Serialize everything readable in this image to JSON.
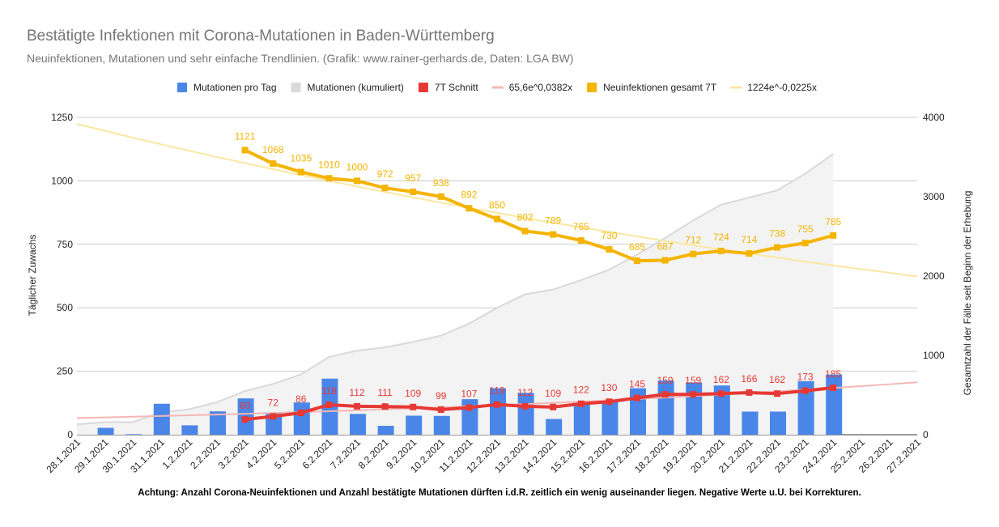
{
  "chart_data": {
    "type": "bar",
    "title": "Bestätigte Infektionen mit Corona-Mutationen in Baden-Württemberg",
    "subtitle": "Neuinfektionen, Mutationen und sehr einfache Trendlinien.  (Grafik: www.rainer-gerhards.de, Daten: LGA BW)",
    "footnote": "Achtung: Anzahl Corona-Neuinfektionen und Anzahl bestätigte Mutationen dürften i.d.R. zeitlich ein wenig auseinander liegen. Negative Werte u.U. bei Korrekturen.",
    "ylabel_left": "Täglicher Zuwachs",
    "ylabel_right": "Gesamtzahl der Fälle seit Beginn der Erhebung",
    "ylim_left": [
      0,
      1250
    ],
    "ylim_right": [
      0,
      4000
    ],
    "yticks_left": [
      0,
      250,
      500,
      750,
      1000,
      1250
    ],
    "yticks_right": [
      0,
      1000,
      2000,
      3000,
      4000
    ],
    "grid": true,
    "legend_position": "top",
    "categories": [
      "28.1.2021",
      "29.1.2021",
      "30.1.2021",
      "31.1.2021",
      "1.2.2021",
      "2.2.2021",
      "3.2.2021",
      "4.2.2021",
      "5.2.2021",
      "6.2.2021",
      "7.2.2021",
      "8.2.2021",
      "9.2.2021",
      "10.2.2021",
      "11.2.2021",
      "12.2.2021",
      "13.2.2021",
      "14.2.2021",
      "15.2.2021",
      "16.2.2021",
      "17.2.2021",
      "18.2.2021",
      "19.2.2021",
      "20.2.2021",
      "21.2.2021",
      "22.2.2021",
      "23.2.2021",
      "24.2.2021",
      "25.2.2021",
      "26.2.2021",
      "27.2.2021"
    ],
    "series": [
      {
        "name": "Mutationen pro Tag",
        "type": "bar",
        "axis": "left",
        "color": "#4a86e8",
        "values": [
          0,
          27,
          2,
          122,
          37,
          92,
          143,
          85,
          127,
          221,
          82,
          35,
          75,
          74,
          140,
          183,
          165,
          62,
          126,
          131,
          183,
          213,
          206,
          194,
          91,
          91,
          211,
          237,
          null,
          null,
          null
        ]
      },
      {
        "name": "Mutationen (kumuliert)",
        "type": "area",
        "axis": "right",
        "color": "#d9d9d9",
        "values": [
          130,
          160,
          160,
          280,
          320,
          410,
          550,
          640,
          760,
          980,
          1060,
          1100,
          1170,
          1250,
          1400,
          1600,
          1770,
          1830,
          1950,
          2080,
          2270,
          2480,
          2700,
          2900,
          2990,
          3080,
          3290,
          3540,
          null,
          null,
          null
        ]
      },
      {
        "name": "7T Schnitt",
        "type": "line",
        "axis": "left",
        "color": "#e53935",
        "values": [
          null,
          null,
          null,
          null,
          null,
          null,
          60,
          72,
          86,
          118,
          112,
          111,
          109,
          99,
          107,
          119,
          112,
          109,
          122,
          130,
          145,
          159,
          159,
          162,
          166,
          162,
          173,
          185,
          null,
          null,
          null
        ]
      },
      {
        "name": "65,6e^0,0382x",
        "type": "trendline",
        "axis": "left",
        "color": "#f4b7b3",
        "values": [
          65.6,
          68.2,
          70.8,
          73.6,
          76.4,
          79.4,
          82.5,
          85.7,
          89.1,
          92.5,
          96.1,
          99.9,
          103.8,
          107.8,
          112.0,
          116.4,
          120.9,
          125.6,
          130.5,
          135.6,
          140.9,
          146.4,
          152.1,
          158.0,
          164.2,
          170.6,
          177.2,
          184.1,
          191.3,
          198.7,
          206.5
        ]
      },
      {
        "name": "Neuinfektionen gesamt 7T",
        "type": "line",
        "axis": "left",
        "color": "#f4b400",
        "values": [
          null,
          null,
          null,
          null,
          null,
          null,
          1121,
          1068,
          1035,
          1010,
          1000,
          972,
          957,
          938,
          892,
          850,
          802,
          789,
          765,
          730,
          685,
          687,
          712,
          724,
          714,
          738,
          755,
          785,
          null,
          null,
          null
        ]
      },
      {
        "name": "1224e^-0,0225x",
        "type": "trendline",
        "axis": "left",
        "color": "#fbe7a1",
        "values": [
          1224,
          1197,
          1170,
          1144,
          1119,
          1094,
          1070,
          1046,
          1023,
          1000,
          978,
          956,
          935,
          914,
          894,
          874,
          854,
          835,
          817,
          799,
          781,
          763,
          746,
          730,
          714,
          698,
          682,
          667,
          652,
          638,
          623
        ]
      }
    ]
  }
}
